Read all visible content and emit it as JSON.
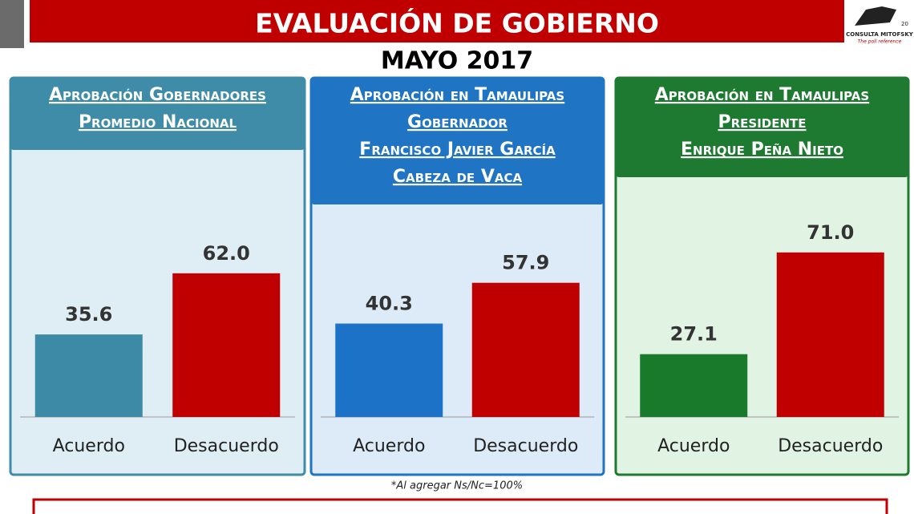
{
  "header": {
    "title": "EVALUACIÓN DE GOBIERNO",
    "subtitle": "MAYO 2017",
    "footnote": "*Al agregar Ns/Nc=100%",
    "logo_name": "CONSULTA MITOFSKY",
    "logo_tagline": "The poll reference",
    "logo_badge": "20"
  },
  "chart_data": [
    {
      "type": "bar",
      "title": [
        "Aprobación Gobernadores",
        "Promedio Nacional"
      ],
      "categories": [
        "Acuerdo",
        "Desacuerdo"
      ],
      "values": [
        35.6,
        62
      ],
      "value_labels": [
        "35.6",
        "62.0"
      ],
      "colors": [
        "#3d8aa6",
        "#c00000"
      ]
    },
    {
      "type": "bar",
      "title": [
        "Aprobación en Tamaulipas",
        "Gobernador",
        "Francisco Javier García",
        "Cabeza de Vaca"
      ],
      "categories": [
        "Acuerdo",
        "Desacuerdo"
      ],
      "values": [
        40.3,
        57.9
      ],
      "value_labels": [
        "40.3",
        "57.9"
      ],
      "colors": [
        "#1c72c6",
        "#c00000"
      ]
    },
    {
      "type": "bar",
      "title": [
        "Aprobación en Tamaulipas",
        "Presidente",
        "Enrique Peña Nieto"
      ],
      "categories": [
        "Acuerdo",
        "Desacuerdo"
      ],
      "values": [
        27.1,
        71
      ],
      "value_labels": [
        "27.1",
        "71.0"
      ],
      "colors": [
        "#1a7a2c",
        "#c00000"
      ]
    }
  ]
}
